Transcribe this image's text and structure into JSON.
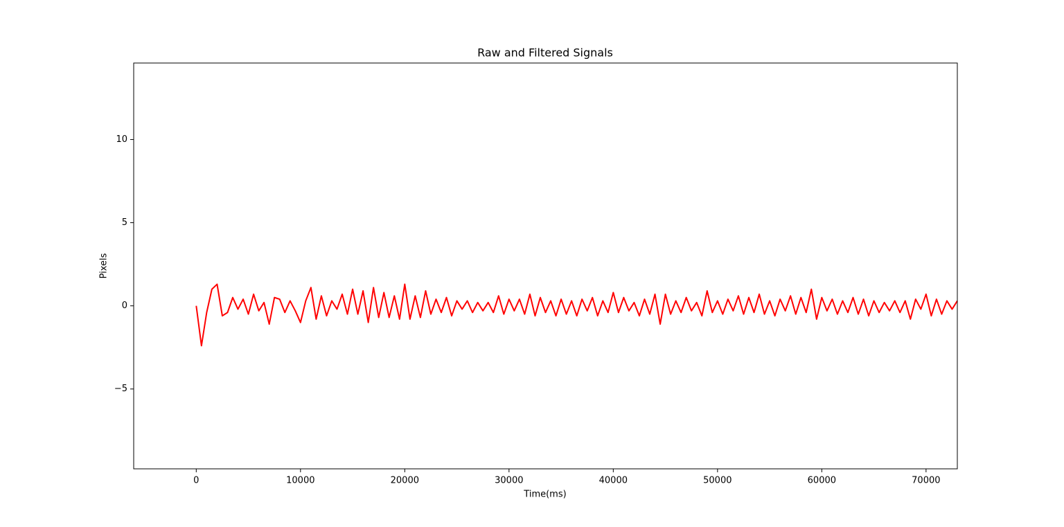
{
  "chart_data": {
    "type": "line",
    "title": "Raw and Filtered Signals",
    "x_label": "Time(ms)",
    "y_label": "Pixels",
    "x": [
      0,
      500,
      1000,
      1500,
      2000,
      2500,
      3000,
      3500,
      4000,
      4500,
      5000,
      5500,
      6000,
      6500,
      7000,
      7500,
      8000,
      8500,
      9000,
      9500,
      10000,
      10500,
      11000,
      11500,
      12000,
      12500,
      13000,
      13500,
      14000,
      14500,
      15000,
      15500,
      16000,
      16500,
      17000,
      17500,
      18000,
      18500,
      19000,
      19500,
      20000,
      20500,
      21000,
      21500,
      22000,
      22500,
      23000,
      23500,
      24000,
      24500,
      25000,
      25500,
      26000,
      26500,
      27000,
      27500,
      28000,
      28500,
      29000,
      29500,
      30000,
      30500,
      31000,
      31500,
      32000,
      32500,
      33000,
      33500,
      34000,
      34500,
      35000,
      35500,
      36000,
      36500,
      37000,
      37500,
      38000,
      38500,
      39000,
      39500,
      40000,
      40500,
      41000,
      41500,
      42000,
      42500,
      43000,
      43500,
      44000,
      44500,
      45000,
      45500,
      46000,
      46500,
      47000,
      47500,
      48000,
      48500,
      49000,
      49500,
      50000,
      50500,
      51000,
      51500,
      52000,
      52500,
      53000,
      53500,
      54000,
      54500,
      55000,
      55500,
      56000,
      56500,
      57000,
      57500,
      58000,
      58500,
      59000,
      59500,
      60000,
      60500,
      61000,
      61500,
      62000,
      62500,
      63000,
      63500,
      64000,
      64500,
      65000,
      65500,
      66000,
      66500,
      67000,
      67500,
      68000,
      68500,
      69000,
      69500,
      70000,
      70500,
      71000,
      71500,
      72000,
      72500,
      73000
    ],
    "series": [
      {
        "color": "#ff0000",
        "values": [
          0,
          -2.4,
          -0.4,
          1.0,
          1.3,
          -0.6,
          -0.4,
          0.5,
          -0.2,
          0.4,
          -0.5,
          0.7,
          -0.3,
          0.2,
          -1.1,
          0.5,
          0.4,
          -0.4,
          0.3,
          -0.3,
          -1.0,
          0.3,
          1.1,
          -0.8,
          0.6,
          -0.6,
          0.3,
          -0.2,
          0.7,
          -0.5,
          1.0,
          -0.5,
          0.9,
          -1.0,
          1.1,
          -0.7,
          0.8,
          -0.7,
          0.6,
          -0.8,
          1.3,
          -0.8,
          0.6,
          -0.7,
          0.9,
          -0.5,
          0.4,
          -0.4,
          0.5,
          -0.6,
          0.3,
          -0.2,
          0.3,
          -0.4,
          0.2,
          -0.3,
          0.2,
          -0.4,
          0.6,
          -0.5,
          0.4,
          -0.3,
          0.4,
          -0.5,
          0.7,
          -0.6,
          0.5,
          -0.4,
          0.3,
          -0.6,
          0.4,
          -0.5,
          0.3,
          -0.6,
          0.4,
          -0.3,
          0.5,
          -0.6,
          0.3,
          -0.4,
          0.8,
          -0.4,
          0.5,
          -0.3,
          0.2,
          -0.6,
          0.4,
          -0.5,
          0.7,
          -1.1,
          0.7,
          -0.5,
          0.3,
          -0.4,
          0.5,
          -0.3,
          0.2,
          -0.6,
          0.9,
          -0.4,
          0.3,
          -0.5,
          0.4,
          -0.3,
          0.6,
          -0.5,
          0.5,
          -0.4,
          0.7,
          -0.5,
          0.3,
          -0.6,
          0.4,
          -0.3,
          0.6,
          -0.5,
          0.5,
          -0.4,
          1.0,
          -0.8,
          0.5,
          -0.3,
          0.4,
          -0.5,
          0.3,
          -0.4,
          0.5,
          -0.5,
          0.4,
          -0.6,
          0.3,
          -0.4,
          0.2,
          -0.3,
          0.3,
          -0.4,
          0.3,
          -0.8,
          0.4,
          -0.2,
          0.7,
          -0.6,
          0.4,
          -0.5,
          0.3,
          -0.2,
          0.3
        ]
      }
    ],
    "xlim": [
      -6000,
      73000
    ],
    "ylim": [
      -9.8,
      14.6
    ],
    "xticks": [
      0,
      10000,
      20000,
      30000,
      40000,
      50000,
      60000,
      70000
    ],
    "yticks": [
      {
        "value": -5,
        "label": "−5"
      },
      0,
      5,
      10
    ]
  }
}
